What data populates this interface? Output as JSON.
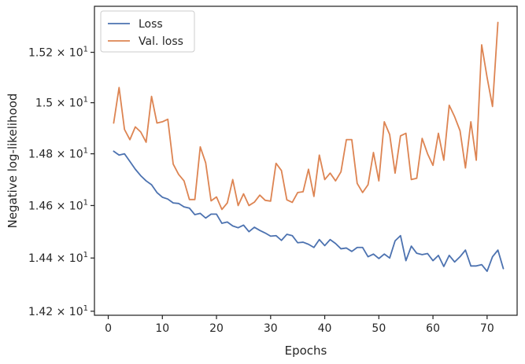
{
  "chart_data": {
    "type": "line",
    "title": "",
    "xlabel": "Epochs",
    "ylabel": "Negative log-likelihood",
    "xlim": [
      -2.55,
      75.55
    ],
    "ylim": [
      14.185,
      15.385
    ],
    "yscale": "log",
    "xticks": [
      0,
      10,
      20,
      30,
      40,
      50,
      60,
      70
    ],
    "yticks": [
      {
        "value": 14.2,
        "mantissa": "1.42",
        "times": "×",
        "base": "10",
        "exp": "1"
      },
      {
        "value": 14.4,
        "mantissa": "1.44",
        "times": "×",
        "base": "10",
        "exp": "1"
      },
      {
        "value": 14.6,
        "mantissa": "1.46",
        "times": "×",
        "base": "10",
        "exp": "1"
      },
      {
        "value": 14.8,
        "mantissa": "1.48",
        "times": "×",
        "base": "10",
        "exp": "1"
      },
      {
        "value": 15.0,
        "mantissa": "1.5",
        "times": "×",
        "base": "10",
        "exp": "1"
      },
      {
        "value": 15.2,
        "mantissa": "1.52",
        "times": "×",
        "base": "10",
        "exp": "1"
      }
    ],
    "grid": false,
    "legend_position": "top-left",
    "series": [
      {
        "name": "Loss",
        "color": "#4c72b0",
        "values": [
          14.81,
          14.795,
          14.8,
          14.77,
          14.74,
          14.715,
          14.695,
          14.68,
          14.65,
          14.632,
          14.625,
          14.61,
          14.608,
          14.595,
          14.59,
          14.565,
          14.57,
          14.552,
          14.567,
          14.567,
          14.532,
          14.537,
          14.522,
          14.515,
          14.525,
          14.5,
          14.517,
          14.505,
          14.495,
          14.483,
          14.485,
          14.467,
          14.49,
          14.485,
          14.458,
          14.46,
          14.452,
          14.44,
          14.47,
          14.447,
          14.47,
          14.455,
          14.435,
          14.438,
          14.425,
          14.44,
          14.44,
          14.405,
          14.415,
          14.398,
          14.415,
          14.4,
          14.465,
          14.485,
          14.39,
          14.445,
          14.418,
          14.413,
          14.417,
          14.39,
          14.41,
          14.368,
          14.41,
          14.385,
          14.405,
          14.43,
          14.37,
          14.37,
          14.375,
          14.35,
          14.405,
          14.43,
          14.36
        ]
      },
      {
        "name": "Val. loss",
        "color": "#dd8452",
        "values": [
          14.92,
          15.06,
          14.895,
          14.855,
          14.905,
          14.885,
          14.845,
          15.025,
          14.92,
          14.925,
          14.935,
          14.76,
          14.72,
          14.695,
          14.623,
          14.623,
          14.827,
          14.765,
          14.618,
          14.633,
          14.585,
          14.61,
          14.7,
          14.6,
          14.645,
          14.6,
          14.613,
          14.64,
          14.62,
          14.617,
          14.763,
          14.735,
          14.622,
          14.612,
          14.65,
          14.653,
          14.74,
          14.635,
          14.795,
          14.7,
          14.725,
          14.695,
          14.73,
          14.855,
          14.855,
          14.685,
          14.65,
          14.68,
          14.805,
          14.695,
          14.925,
          14.875,
          14.725,
          14.87,
          14.88,
          14.7,
          14.705,
          14.86,
          14.8,
          14.755,
          14.88,
          14.775,
          14.99,
          14.945,
          14.89,
          14.745,
          14.925,
          14.775,
          15.23,
          15.1,
          14.985,
          15.32
        ]
      }
    ]
  }
}
